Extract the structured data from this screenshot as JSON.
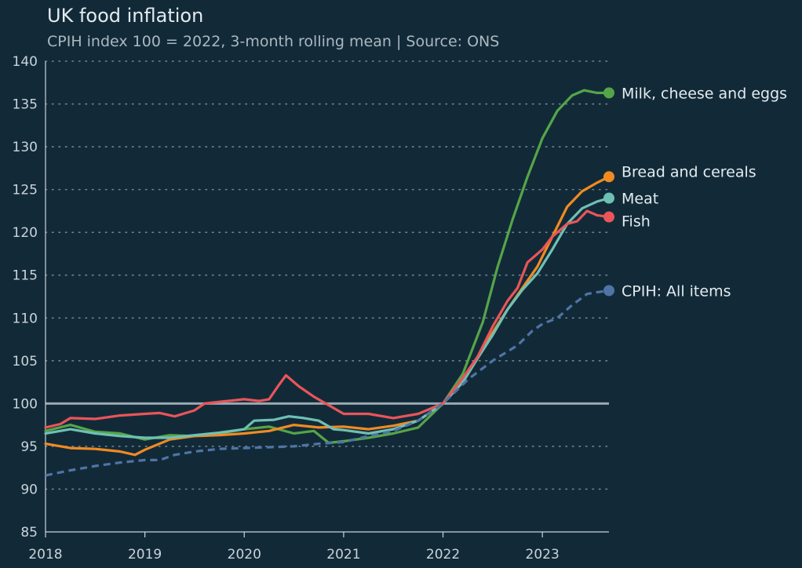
{
  "title": "UK food inflation",
  "subtitle": "CPIH index 100 = 2022, 3-month rolling mean | Source: ONS",
  "colors": {
    "background": "#122a38",
    "grid": "#6e8592",
    "reference_line": "#9aa9b1",
    "axis": "#c9d4da"
  },
  "chart_data": {
    "type": "line",
    "title": "UK food inflation",
    "subtitle": "CPIH index 100 = 2022, 3-month rolling mean | Source: ONS",
    "xlabel": "",
    "ylabel": "",
    "xlim": [
      2018.0,
      2023.67
    ],
    "ylim": [
      85,
      140
    ],
    "yticks": [
      85,
      90,
      95,
      100,
      105,
      110,
      115,
      120,
      125,
      130,
      135,
      140
    ],
    "xticks": [
      2018,
      2019,
      2020,
      2021,
      2022,
      2023
    ],
    "grid": "horizontal dotted",
    "reference_line": 100,
    "legend": "direct labels at line ends (right)",
    "series": [
      {
        "name": "Milk, cheese and eggs",
        "color": "#55a548",
        "dashed": false,
        "points": [
          [
            2018.0,
            96.8
          ],
          [
            2018.25,
            97.5
          ],
          [
            2018.5,
            96.7
          ],
          [
            2018.75,
            96.5
          ],
          [
            2019.0,
            95.8
          ],
          [
            2019.25,
            96.3
          ],
          [
            2019.5,
            96.2
          ],
          [
            2019.75,
            96.5
          ],
          [
            2020.0,
            97.0
          ],
          [
            2020.25,
            97.3
          ],
          [
            2020.5,
            96.5
          ],
          [
            2020.7,
            96.8
          ],
          [
            2020.85,
            95.4
          ],
          [
            2021.0,
            95.6
          ],
          [
            2021.25,
            96.0
          ],
          [
            2021.5,
            96.5
          ],
          [
            2021.75,
            97.2
          ],
          [
            2022.0,
            100.0
          ],
          [
            2022.2,
            103.5
          ],
          [
            2022.4,
            109.5
          ],
          [
            2022.55,
            116.0
          ],
          [
            2022.7,
            121.5
          ],
          [
            2022.85,
            126.5
          ],
          [
            2023.0,
            131.0
          ],
          [
            2023.15,
            134.2
          ],
          [
            2023.3,
            136.0
          ],
          [
            2023.42,
            136.6
          ],
          [
            2023.55,
            136.3
          ],
          [
            2023.67,
            136.3
          ]
        ]
      },
      {
        "name": "Bread and cereals",
        "color": "#f18a22",
        "dashed": false,
        "points": [
          [
            2018.0,
            95.3
          ],
          [
            2018.25,
            94.8
          ],
          [
            2018.5,
            94.7
          ],
          [
            2018.75,
            94.4
          ],
          [
            2018.9,
            94.0
          ],
          [
            2019.0,
            94.6
          ],
          [
            2019.25,
            95.8
          ],
          [
            2019.5,
            96.2
          ],
          [
            2019.75,
            96.3
          ],
          [
            2020.0,
            96.5
          ],
          [
            2020.25,
            96.8
          ],
          [
            2020.5,
            97.5
          ],
          [
            2020.75,
            97.2
          ],
          [
            2021.0,
            97.3
          ],
          [
            2021.25,
            97.0
          ],
          [
            2021.5,
            97.4
          ],
          [
            2021.75,
            98.0
          ],
          [
            2022.0,
            100.0
          ],
          [
            2022.2,
            102.8
          ],
          [
            2022.35,
            105.5
          ],
          [
            2022.5,
            108.3
          ],
          [
            2022.65,
            111.0
          ],
          [
            2022.8,
            113.5
          ],
          [
            2022.95,
            116.0
          ],
          [
            2023.1,
            119.5
          ],
          [
            2023.25,
            123.0
          ],
          [
            2023.4,
            124.8
          ],
          [
            2023.55,
            125.8
          ],
          [
            2023.67,
            126.5
          ]
        ]
      },
      {
        "name": "Meat",
        "color": "#6fc0b4",
        "dashed": false,
        "points": [
          [
            2018.0,
            96.5
          ],
          [
            2018.25,
            97.0
          ],
          [
            2018.5,
            96.5
          ],
          [
            2018.75,
            96.2
          ],
          [
            2019.0,
            96.0
          ],
          [
            2019.25,
            96.0
          ],
          [
            2019.5,
            96.3
          ],
          [
            2019.75,
            96.6
          ],
          [
            2020.0,
            97.0
          ],
          [
            2020.1,
            98.0
          ],
          [
            2020.3,
            98.1
          ],
          [
            2020.45,
            98.5
          ],
          [
            2020.6,
            98.3
          ],
          [
            2020.75,
            98.0
          ],
          [
            2020.9,
            97.0
          ],
          [
            2021.0,
            96.9
          ],
          [
            2021.25,
            96.5
          ],
          [
            2021.5,
            97.0
          ],
          [
            2021.75,
            98.0
          ],
          [
            2022.0,
            100.0
          ],
          [
            2022.2,
            102.5
          ],
          [
            2022.35,
            105.3
          ],
          [
            2022.5,
            108.0
          ],
          [
            2022.65,
            111.0
          ],
          [
            2022.8,
            113.3
          ],
          [
            2022.95,
            115.2
          ],
          [
            2023.1,
            118.0
          ],
          [
            2023.25,
            121.0
          ],
          [
            2023.4,
            122.8
          ],
          [
            2023.55,
            123.6
          ],
          [
            2023.67,
            124.0
          ]
        ]
      },
      {
        "name": "Fish",
        "color": "#e95559",
        "dashed": false,
        "points": [
          [
            2018.0,
            97.2
          ],
          [
            2018.15,
            97.6
          ],
          [
            2018.25,
            98.3
          ],
          [
            2018.5,
            98.2
          ],
          [
            2018.75,
            98.6
          ],
          [
            2019.0,
            98.8
          ],
          [
            2019.15,
            98.9
          ],
          [
            2019.3,
            98.5
          ],
          [
            2019.5,
            99.2
          ],
          [
            2019.6,
            100.0
          ],
          [
            2019.75,
            100.2
          ],
          [
            2020.0,
            100.5
          ],
          [
            2020.15,
            100.3
          ],
          [
            2020.25,
            100.5
          ],
          [
            2020.35,
            102.2
          ],
          [
            2020.42,
            103.3
          ],
          [
            2020.55,
            102.0
          ],
          [
            2020.7,
            100.8
          ],
          [
            2020.85,
            99.8
          ],
          [
            2021.0,
            98.8
          ],
          [
            2021.25,
            98.8
          ],
          [
            2021.5,
            98.3
          ],
          [
            2021.75,
            98.8
          ],
          [
            2022.0,
            100.0
          ],
          [
            2022.2,
            103.0
          ],
          [
            2022.35,
            105.5
          ],
          [
            2022.5,
            109.0
          ],
          [
            2022.65,
            112.0
          ],
          [
            2022.75,
            113.5
          ],
          [
            2022.85,
            116.5
          ],
          [
            2023.0,
            118.0
          ],
          [
            2023.1,
            119.5
          ],
          [
            2023.25,
            121.0
          ],
          [
            2023.35,
            121.3
          ],
          [
            2023.45,
            122.5
          ],
          [
            2023.55,
            122.0
          ],
          [
            2023.67,
            121.8
          ]
        ]
      },
      {
        "name": "CPIH: All items",
        "color": "#4f74a6",
        "dashed": true,
        "points": [
          [
            2018.0,
            91.6
          ],
          [
            2018.25,
            92.2
          ],
          [
            2018.5,
            92.7
          ],
          [
            2018.75,
            93.1
          ],
          [
            2019.0,
            93.4
          ],
          [
            2019.15,
            93.4
          ],
          [
            2019.3,
            94.0
          ],
          [
            2019.5,
            94.4
          ],
          [
            2019.75,
            94.7
          ],
          [
            2020.0,
            94.8
          ],
          [
            2020.25,
            94.9
          ],
          [
            2020.5,
            95.0
          ],
          [
            2020.75,
            95.3
          ],
          [
            2021.0,
            95.5
          ],
          [
            2021.25,
            96.2
          ],
          [
            2021.5,
            96.8
          ],
          [
            2021.75,
            98.0
          ],
          [
            2022.0,
            100.0
          ],
          [
            2022.25,
            102.8
          ],
          [
            2022.5,
            105.0
          ],
          [
            2022.75,
            106.8
          ],
          [
            2022.9,
            108.5
          ],
          [
            2023.0,
            109.3
          ],
          [
            2023.15,
            110.0
          ],
          [
            2023.3,
            111.5
          ],
          [
            2023.45,
            112.8
          ],
          [
            2023.55,
            113.0
          ],
          [
            2023.67,
            113.2
          ]
        ]
      }
    ]
  }
}
